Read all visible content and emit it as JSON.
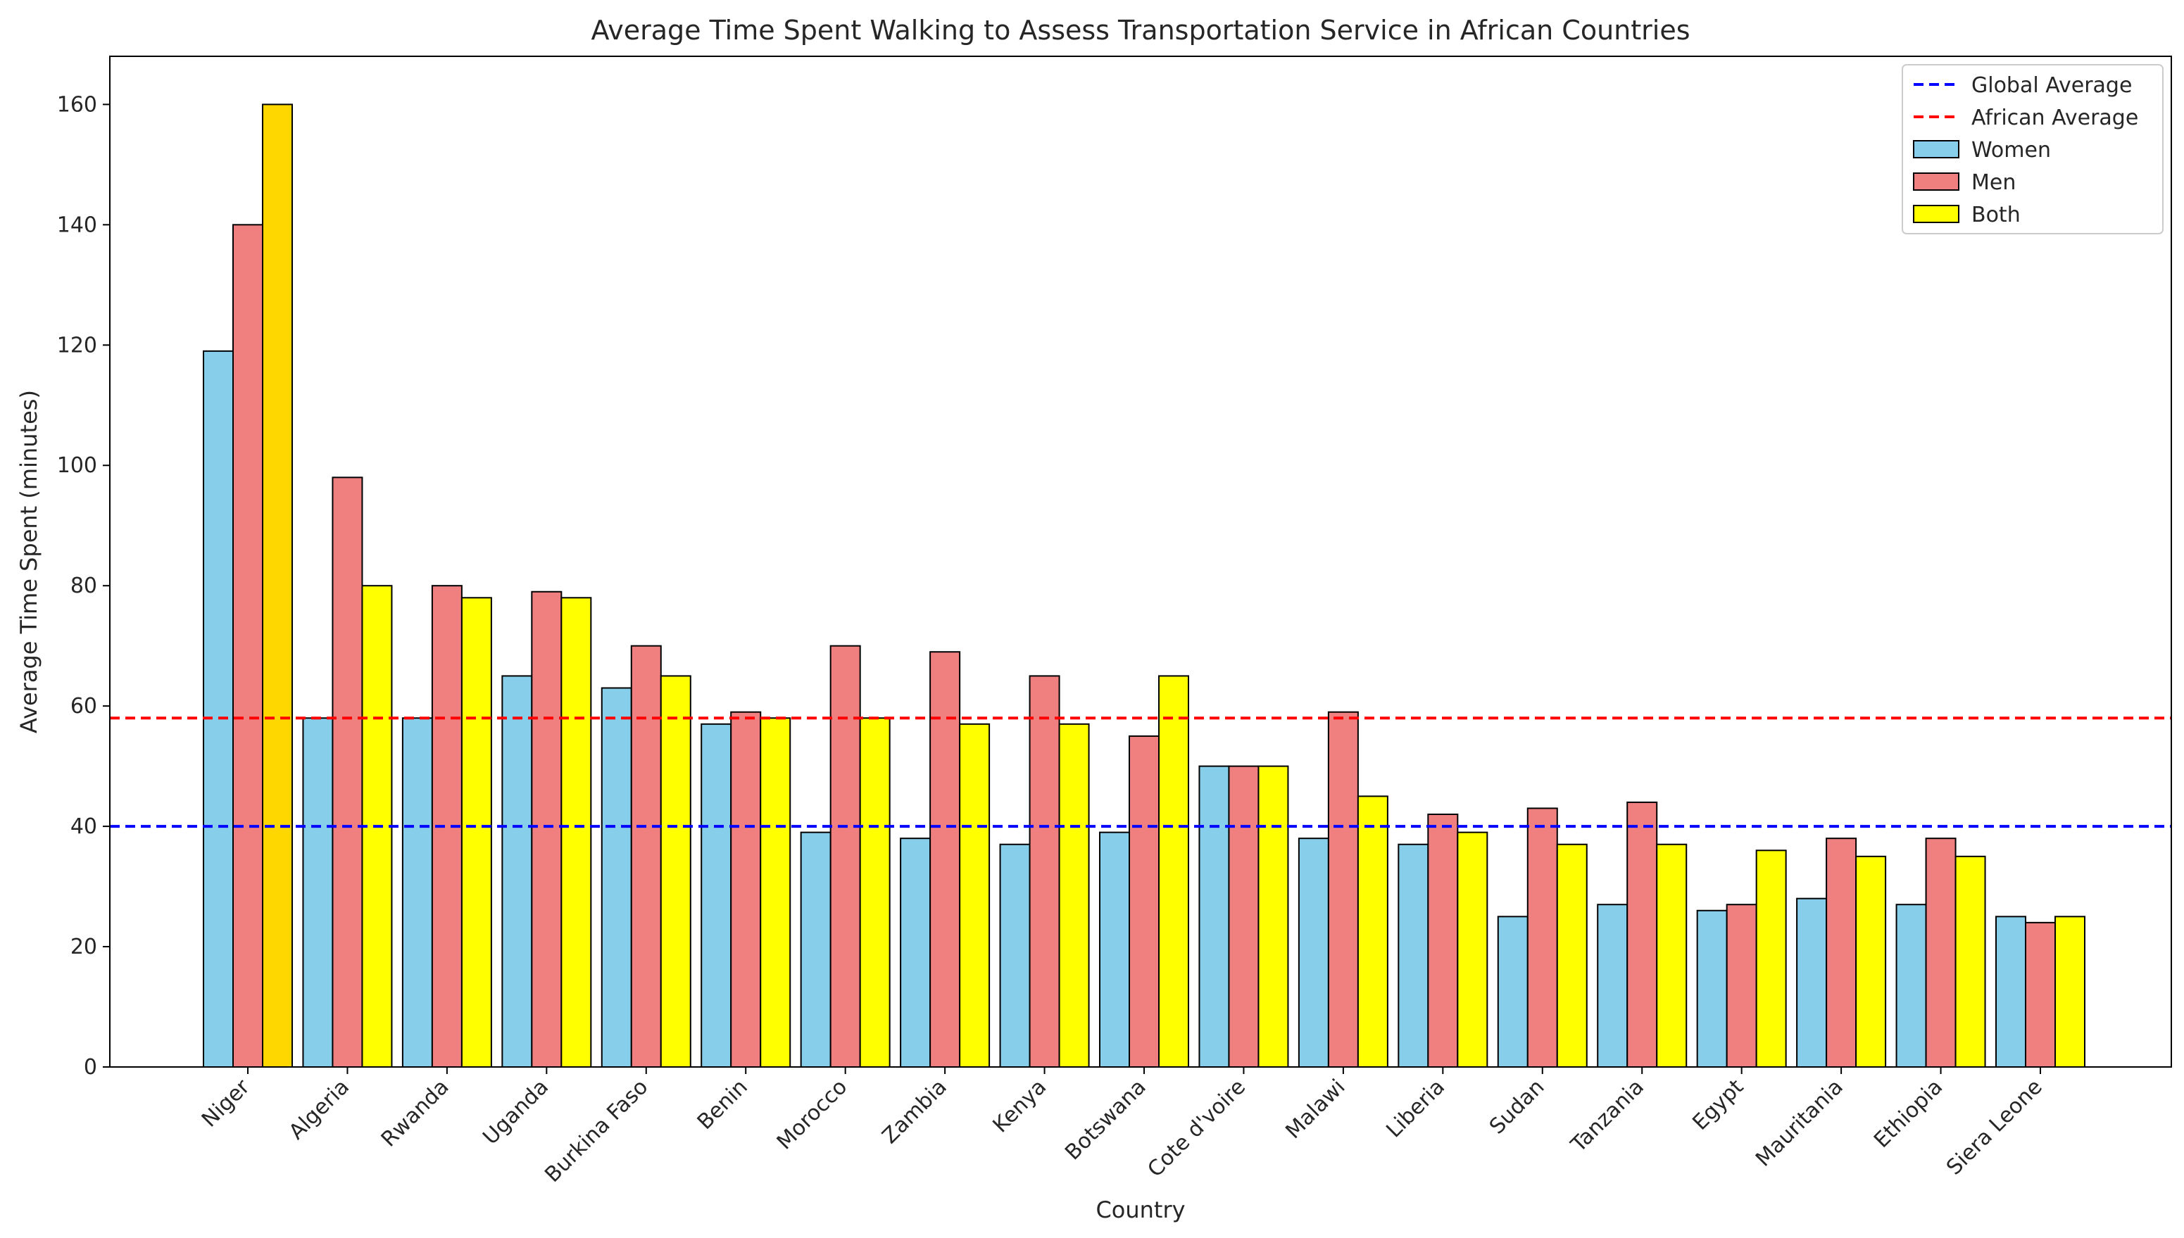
{
  "chart_data": {
    "type": "bar",
    "title": "Average Time Spent Walking to Assess Transportation Service in African Countries",
    "xlabel": "Country",
    "ylabel": "Average Time Spent (minutes)",
    "ylim": [
      0,
      168
    ],
    "yticks": [
      0,
      20,
      40,
      60,
      80,
      100,
      120,
      140,
      160
    ],
    "grid": false,
    "legend_position": "top-right",
    "categories": [
      "Niger",
      "Algeria",
      "Rwanda",
      "Uganda",
      "Burkina Faso",
      "Benin",
      "Morocco",
      "Zambia",
      "Kenya",
      "Botswana",
      "Cote d'voire",
      "Malawi",
      "Liberia",
      "Sudan",
      "Tanzania",
      "Egypt",
      "Mauritania",
      "Ethiopia",
      "Siera Leone"
    ],
    "series": [
      {
        "name": "Women",
        "color": "#87CEEB",
        "values": [
          119,
          58,
          58,
          65,
          63,
          57,
          39,
          38,
          37,
          39,
          50,
          38,
          37,
          25,
          27,
          26,
          28,
          27,
          25
        ]
      },
      {
        "name": "Men",
        "color": "#F08080",
        "values": [
          140,
          98,
          80,
          79,
          70,
          59,
          70,
          69,
          65,
          55,
          50,
          59,
          42,
          43,
          44,
          27,
          38,
          38,
          24
        ]
      },
      {
        "name": "Both",
        "color": "#FFFF00",
        "first_bar_color": "#FFD700",
        "values": [
          160,
          80,
          78,
          78,
          65,
          58,
          58,
          57,
          57,
          65,
          50,
          45,
          39,
          37,
          37,
          36,
          35,
          35,
          25
        ]
      }
    ],
    "reference_lines": [
      {
        "name": "Global Average",
        "value": 40,
        "color": "#0000FF",
        "style": "dashed"
      },
      {
        "name": "African Average",
        "value": 58,
        "color": "#FF0000",
        "style": "dashed"
      }
    ]
  }
}
